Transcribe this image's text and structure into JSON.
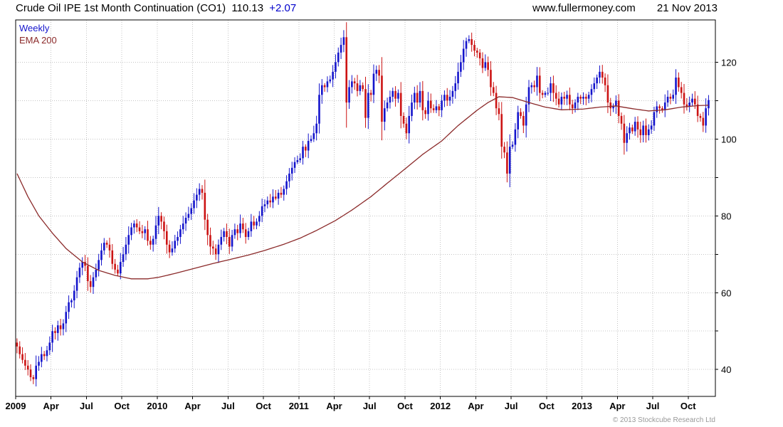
{
  "header": {
    "title": "Crude Oil IPE 1st Month Continuation (CO1)",
    "last_price": "110.13",
    "change": "+2.07",
    "website": "www.fullermoney.com",
    "date": "21 Nov 2013"
  },
  "legend": {
    "series1": "Weekly",
    "series2": "EMA 200"
  },
  "footer": {
    "copyright": "© 2013 Stockcube Research Ltd"
  },
  "colors": {
    "up": "#1414cc",
    "down": "#cc1414",
    "ema": "#8b2a2a",
    "grid": "#c4c4c4",
    "axis": "#000000",
    "change": "#0000cc"
  },
  "chart_data": {
    "type": "candlestick",
    "title": "Crude Oil IPE 1st Month Continuation (CO1)",
    "interval": "Weekly",
    "overlay": "EMA 200",
    "last_close": 110.13,
    "change": 2.07,
    "ylim": [
      33,
      131
    ],
    "y_gridlines_every": 10,
    "y_label_ticks": [
      40,
      60,
      80,
      100,
      120
    ],
    "weeks_span": 257,
    "x_ticks": [
      {
        "label": "2009",
        "week": 0
      },
      {
        "label": "Apr",
        "week": 13
      },
      {
        "label": "Jul",
        "week": 26
      },
      {
        "label": "Oct",
        "week": 39
      },
      {
        "label": "2010",
        "week": 52
      },
      {
        "label": "Apr",
        "week": 65
      },
      {
        "label": "Jul",
        "week": 78
      },
      {
        "label": "Oct",
        "week": 91
      },
      {
        "label": "2011",
        "week": 104
      },
      {
        "label": "Apr",
        "week": 117
      },
      {
        "label": "Jul",
        "week": 130
      },
      {
        "label": "Oct",
        "week": 143
      },
      {
        "label": "2012",
        "week": 156
      },
      {
        "label": "Apr",
        "week": 169
      },
      {
        "label": "Jul",
        "week": 182
      },
      {
        "label": "Oct",
        "week": 195
      },
      {
        "label": "2013",
        "week": 208
      },
      {
        "label": "Apr",
        "week": 221
      },
      {
        "label": "Jul",
        "week": 234
      },
      {
        "label": "Oct",
        "week": 247
      }
    ],
    "weekly_closes": [
      46,
      44,
      42.5,
      41,
      40,
      38,
      37.5,
      41,
      42,
      44,
      43.5,
      45,
      47,
      50,
      49.5,
      51.5,
      50.5,
      52,
      55,
      57.5,
      58,
      60.5,
      64,
      66.5,
      68,
      67,
      63,
      61.5,
      64,
      66,
      68.5,
      71,
      73,
      72.5,
      71,
      67.5,
      66,
      65,
      68,
      70,
      72.5,
      75,
      77,
      78,
      77,
      76,
      75.5,
      76.5,
      73.5,
      72.5,
      74,
      77.5,
      80,
      78.5,
      76,
      72.5,
      70.5,
      71.5,
      73.5,
      74.5,
      76.5,
      78,
      79.5,
      80.5,
      82,
      84,
      85.5,
      87,
      86,
      79,
      75,
      72,
      71.5,
      70,
      72.5,
      74.5,
      76,
      74.5,
      72,
      75,
      76.5,
      75.5,
      78,
      76.5,
      74.5,
      76,
      78.5,
      77.5,
      78.5,
      80,
      82.5,
      83,
      84,
      83.5,
      85,
      84.5,
      86,
      85.5,
      87,
      89,
      91,
      92.5,
      94,
      94.5,
      95,
      98,
      97,
      99.5,
      100,
      101.5,
      104,
      111.5,
      114,
      113.5,
      115,
      115.5,
      117.5,
      120,
      122.5,
      124.5,
      126.5,
      109.5,
      113.5,
      115,
      114.5,
      112.5,
      114,
      113,
      105.5,
      112,
      111.5,
      117,
      118,
      116.5,
      104.5,
      108,
      109.5,
      111,
      112.5,
      110.5,
      112,
      106,
      104,
      101.5,
      106,
      109.5,
      112,
      109.5,
      112.5,
      107.5,
      106.5,
      110,
      108,
      107.5,
      108.5,
      107.5,
      110,
      111.5,
      110,
      111,
      112.5,
      114.5,
      117.5,
      120,
      123.5,
      125.5,
      126,
      124.5,
      123,
      122.5,
      121,
      118.5,
      120,
      118,
      113.5,
      112,
      108,
      106.5,
      98,
      96.5,
      91,
      98,
      98.5,
      102.5,
      107,
      106,
      103.5,
      109,
      113.5,
      114,
      113.5,
      116.5,
      112,
      111.5,
      112,
      112,
      114.5,
      112,
      110.5,
      109,
      111,
      110.5,
      111.5,
      109,
      108,
      109.5,
      111,
      110.5,
      111,
      110.5,
      111.5,
      113,
      114.5,
      116,
      117.5,
      116,
      114,
      109.5,
      108,
      108.5,
      110,
      106,
      104,
      99,
      101.5,
      103,
      102,
      104.5,
      102.5,
      101,
      103.5,
      101,
      102.5,
      103.5,
      107,
      108.5,
      108,
      107.5,
      109.5,
      111,
      110.5,
      111.5,
      116,
      113.5,
      112,
      109,
      108.5,
      109.5,
      110.5,
      109,
      106,
      105.5,
      103.5,
      108,
      110.13
    ],
    "ema200_anchors": [
      [
        0,
        91
      ],
      [
        4,
        85
      ],
      [
        8,
        80
      ],
      [
        13,
        75.5
      ],
      [
        18,
        71.5
      ],
      [
        24,
        68
      ],
      [
        30,
        65.8
      ],
      [
        36,
        64.5
      ],
      [
        42,
        63.6
      ],
      [
        48,
        63.6
      ],
      [
        52,
        64
      ],
      [
        58,
        65
      ],
      [
        65,
        66.3
      ],
      [
        72,
        67.6
      ],
      [
        78,
        68.6
      ],
      [
        85,
        69.8
      ],
      [
        91,
        71
      ],
      [
        98,
        72.6
      ],
      [
        104,
        74.2
      ],
      [
        110,
        76.2
      ],
      [
        117,
        78.8
      ],
      [
        123,
        81.5
      ],
      [
        130,
        85
      ],
      [
        136,
        88.5
      ],
      [
        143,
        92.5
      ],
      [
        149,
        96
      ],
      [
        156,
        99.5
      ],
      [
        162,
        103.5
      ],
      [
        169,
        107.5
      ],
      [
        173,
        109.5
      ],
      [
        177,
        111
      ],
      [
        182,
        110.8
      ],
      [
        188,
        109.5
      ],
      [
        194,
        108.3
      ],
      [
        200,
        107.6
      ],
      [
        208,
        107.8
      ],
      [
        214,
        108.3
      ],
      [
        220,
        108.6
      ],
      [
        226,
        107.9
      ],
      [
        232,
        107.3
      ],
      [
        238,
        107.6
      ],
      [
        244,
        108.3
      ],
      [
        250,
        108.7
      ],
      [
        254,
        108.8
      ]
    ]
  }
}
